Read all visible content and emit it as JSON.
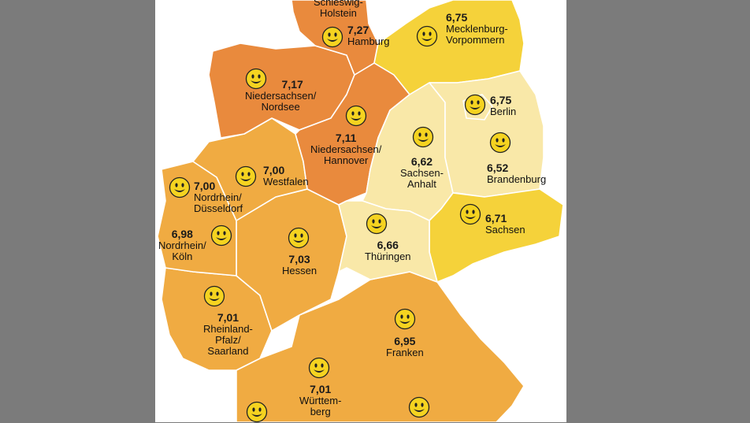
{
  "colors": {
    "background": "#7b7b7b",
    "panel": "#ffffff",
    "score_high": "#e98a3d",
    "score_upper": "#f0ab42",
    "score_mid": "#f5d23a",
    "score_low": "#f9e8a8",
    "smiley_face": "#f5d320"
  },
  "regions": [
    {
      "id": "schleswig-holstein",
      "name": "Schleswig-Holstein",
      "value": "",
      "name_lines": [
        "Schleswig-",
        "Holstein"
      ]
    },
    {
      "id": "hamburg",
      "name": "Hamburg",
      "value": "7,27",
      "name_lines": [
        "Hamburg"
      ]
    },
    {
      "id": "mecklenburg-vorpommern",
      "name": "Mecklenburg-Vorpommern",
      "value": "6,75",
      "name_lines": [
        "Mecklenburg-",
        "Vorpommern"
      ]
    },
    {
      "id": "niedersachsen-nordsee",
      "name": "Niedersachsen/Nordsee",
      "value": "7,17",
      "name_lines": [
        "Niedersachsen/",
        "Nordsee"
      ]
    },
    {
      "id": "niedersachsen-hannover",
      "name": "Niedersachsen/Hannover",
      "value": "7,11",
      "name_lines": [
        "Niedersachsen/",
        "Hannover"
      ]
    },
    {
      "id": "berlin",
      "name": "Berlin",
      "value": "6,75",
      "name_lines": [
        "Berlin"
      ]
    },
    {
      "id": "sachsen-anhalt",
      "name": "Sachsen-Anhalt",
      "value": "6,62",
      "name_lines": [
        "Sachsen-",
        "Anhalt"
      ]
    },
    {
      "id": "brandenburg",
      "name": "Brandenburg",
      "value": "6,52",
      "name_lines": [
        "Brandenburg"
      ]
    },
    {
      "id": "westfalen",
      "name": "Westfalen",
      "value": "7,00",
      "name_lines": [
        "Westfalen"
      ]
    },
    {
      "id": "nordrhein-duesseldorf",
      "name": "Nordrhein/Düsseldorf",
      "value": "7,00",
      "name_lines": [
        "Nordrhein/",
        "Düsseldorf"
      ]
    },
    {
      "id": "nordrhein-koeln",
      "name": "Nordrhein/Köln",
      "value": "6,98",
      "name_lines": [
        "Nordrhein/",
        "Köln"
      ]
    },
    {
      "id": "sachsen",
      "name": "Sachsen",
      "value": "6,71",
      "name_lines": [
        "Sachsen"
      ]
    },
    {
      "id": "thueringen",
      "name": "Thüringen",
      "value": "6,66",
      "name_lines": [
        "Thüringen"
      ]
    },
    {
      "id": "hessen",
      "name": "Hessen",
      "value": "7,03",
      "name_lines": [
        "Hessen"
      ]
    },
    {
      "id": "rheinland-pfalz-saarland",
      "name": "Rheinland-Pfalz/Saarland",
      "value": "7,01",
      "name_lines": [
        "Rheinland-",
        "Pfalz/",
        "Saarland"
      ]
    },
    {
      "id": "franken",
      "name": "Franken",
      "value": "6,95",
      "name_lines": [
        "Franken"
      ]
    },
    {
      "id": "wuerttemberg",
      "name": "Württemberg",
      "value": "7,01",
      "name_lines": [
        "Württem-",
        "berg"
      ]
    }
  ]
}
